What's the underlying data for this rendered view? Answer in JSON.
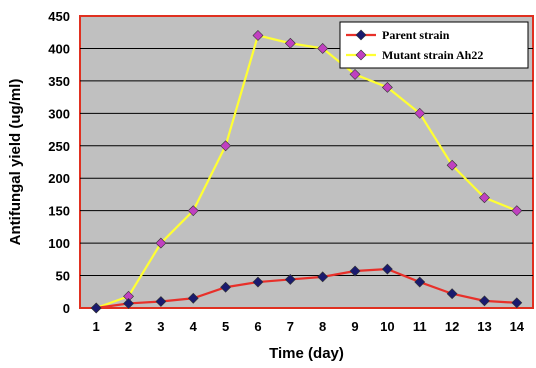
{
  "chart_data": {
    "type": "line",
    "xlabel": "Time (day)",
    "ylabel": "Antifungal yield (ug/ml)",
    "ylim": [
      0,
      450
    ],
    "yticks": [
      0,
      50,
      100,
      150,
      200,
      250,
      300,
      350,
      400,
      450
    ],
    "categories": [
      "1",
      "2",
      "3",
      "4",
      "5",
      "6",
      "7",
      "8",
      "9",
      "10",
      "11",
      "12",
      "13",
      "14"
    ],
    "grid": true,
    "legend_position": "top-right",
    "plot_background": "#c0c0c0",
    "plot_border_color": "#e03020",
    "series": [
      {
        "name": "Parent strain",
        "line_color": "#e8302a",
        "marker_color": "#1a1a6e",
        "values": [
          0,
          7,
          10,
          15,
          32,
          40,
          44,
          48,
          57,
          60,
          40,
          22,
          11,
          8
        ]
      },
      {
        "name": "Mutant strain Ah22",
        "line_color": "#ffff33",
        "marker_color": "#c040c0",
        "values": [
          0,
          18,
          100,
          150,
          250,
          420,
          408,
          400,
          360,
          340,
          300,
          220,
          170,
          150
        ]
      }
    ]
  }
}
